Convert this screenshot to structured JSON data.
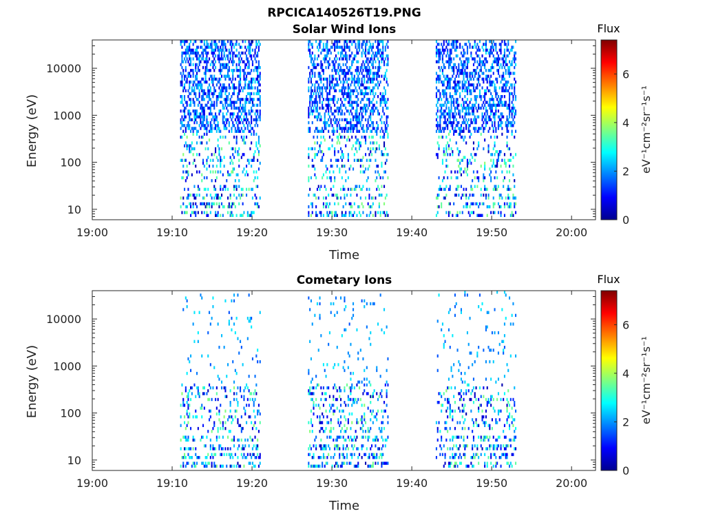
{
  "figure_title": "RPCICA140526T19.PNG",
  "chart_data": [
    {
      "type": "heatmap",
      "title": "Solar Wind Ions",
      "xlabel": "Time",
      "ylabel": "Energy (eV)",
      "y_scale": "log",
      "ylim": [
        6,
        40000
      ],
      "xlim": [
        "19:00",
        "20:03"
      ],
      "x_ticks": [
        "19:00",
        "19:10",
        "19:20",
        "19:30",
        "19:40",
        "19:50",
        "20:00"
      ],
      "y_ticks": [
        "10",
        "100",
        "1000",
        "10000"
      ],
      "colorbar": {
        "title": "Flux",
        "label": "eV⁻¹cm⁻²sr⁻¹s⁻¹",
        "range": [
          0,
          7.4
        ],
        "ticks": [
          "0",
          "2",
          "4",
          "6"
        ],
        "colormap": "jet"
      },
      "active_intervals": [
        [
          "19:11",
          "19:21"
        ],
        [
          "19:27",
          "19:37"
        ],
        [
          "19:43",
          "19:53"
        ]
      ],
      "seed": 7,
      "upper_density": 0.45,
      "upper_flux_range": [
        0.6,
        2.6
      ],
      "lower_flux_range": [
        0.3,
        3.8
      ]
    },
    {
      "type": "heatmap",
      "title": "Cometary Ions",
      "xlabel": "Time",
      "ylabel": "Energy (eV)",
      "y_scale": "log",
      "ylim": [
        6,
        40000
      ],
      "xlim": [
        "19:00",
        "20:03"
      ],
      "x_ticks": [
        "19:00",
        "19:10",
        "19:20",
        "19:30",
        "19:40",
        "19:50",
        "20:00"
      ],
      "y_ticks": [
        "10",
        "100",
        "1000",
        "10000"
      ],
      "colorbar": {
        "title": "Flux",
        "label": "eV⁻¹cm⁻²sr⁻¹s⁻¹",
        "range": [
          0,
          7.4
        ],
        "ticks": [
          "0",
          "2",
          "4",
          "6"
        ],
        "colormap": "jet"
      },
      "active_intervals": [
        [
          "19:11",
          "19:21"
        ],
        [
          "19:27",
          "19:37"
        ],
        [
          "19:43",
          "19:53"
        ]
      ],
      "seed": 19,
      "upper_density": 0.04,
      "upper_flux_range": [
        1.5,
        2.7
      ],
      "lower_flux_range": [
        0.3,
        3.8
      ]
    }
  ]
}
